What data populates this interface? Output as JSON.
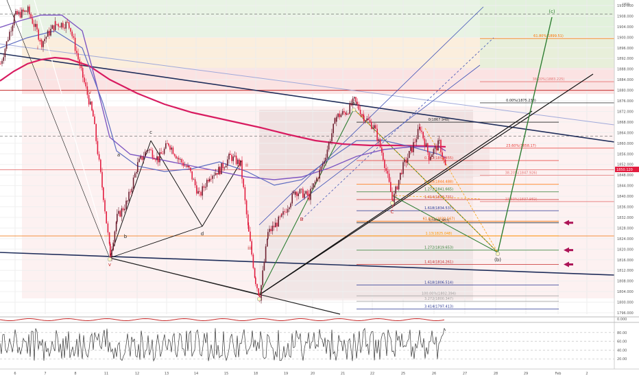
{
  "chart_data": {
    "type": "candlestick-annotated",
    "currency_label": "USD",
    "price_axis": {
      "ticks": [
        "1912.000",
        "1908.000",
        "1904.000",
        "1900.000",
        "1896.000",
        "1892.000",
        "1888.000",
        "1884.000",
        "1880.000",
        "1876.000",
        "1872.000",
        "1868.000",
        "1864.000",
        "1860.000",
        "1856.000",
        "1852.000",
        "1848.000",
        "1844.000",
        "1840.000",
        "1836.000",
        "1832.000",
        "1828.000",
        "1824.000",
        "1820.000",
        "1816.000",
        "1812.000",
        "1808.000",
        "1804.000",
        "1800.000",
        "1796.000"
      ],
      "current_price": "1850.120"
    },
    "time_axis": {
      "ticks": [
        "6",
        "7",
        "8",
        "11",
        "12",
        "13",
        "14",
        "15",
        "18",
        "19",
        "20",
        "21",
        "22",
        "25",
        "26",
        "27",
        "28",
        "29",
        "Feb",
        "2"
      ]
    },
    "wave_labels": [
      "(a)",
      "(b)",
      "(c)",
      "a",
      "b",
      "c",
      "d",
      "ii",
      "iii",
      "iv",
      "v",
      "i",
      "A",
      "B",
      "C"
    ],
    "fib_levels": [
      {
        "label": "0.00%(1875.238)",
        "value": 1875.238,
        "color": "#222222"
      },
      {
        "label": "0(1867.948)",
        "value": 1867.948,
        "color": "#222222"
      },
      {
        "label": "23.60%(1858.17)",
        "value": 1858.17,
        "color": "#e53935"
      },
      {
        "label": "0.382(1853.455)",
        "value": 1853.455,
        "color": "#e53935"
      },
      {
        "label": "38.20%(1847.926)",
        "value": 1847.926,
        "color": "#e57373"
      },
      {
        "label": "0.618(1844.488)",
        "value": 1844.488,
        "color": "#ff6f00"
      },
      {
        "label": "1.272(1841.665)",
        "value": 1841.665,
        "color": "#2e7d32"
      },
      {
        "label": "1.414(1838.731)",
        "value": 1838.731,
        "color": "#c62828"
      },
      {
        "label": "1.618(1834.537)",
        "value": 1834.537,
        "color": "#283593"
      },
      {
        "label": "1(1829.982)",
        "value": 1829.982,
        "color": "#222222"
      },
      {
        "label": "61.80%(1830.567)",
        "value": 1830.567,
        "color": "#ef6c00"
      },
      {
        "label": "1.13(1825.048)",
        "value": 1825.048,
        "color": "#ff9800"
      },
      {
        "label": "1.272(1819.653)",
        "value": 1819.653,
        "color": "#2e7d32"
      },
      {
        "label": "1.414(1814.261)",
        "value": 1814.261,
        "color": "#c62828"
      },
      {
        "label": "1.618(1806.514)",
        "value": 1806.514,
        "color": "#283593"
      },
      {
        "label": "61.80%(1899.51)",
        "value": 1899.51,
        "color": "#ff6f00"
      },
      {
        "label": "38.20%(1883.225)",
        "value": 1883.225,
        "color": "#e57373"
      },
      {
        "label": "23.60%(1837.982)",
        "value": 1837.982,
        "color": "#e57373"
      },
      {
        "label": "100.00%(1802.394)",
        "value": 1802.394,
        "color": "#9e9e9e"
      },
      {
        "label": "3.272(1800.347)",
        "value": 1800.347,
        "color": "#9e9e9e"
      },
      {
        "label": "3.414(1797.413)",
        "value": 1797.413,
        "color": "#283593"
      }
    ],
    "oscillator_ticks": [
      "0.000",
      "80.00",
      "60.00",
      "40.00",
      "20.00"
    ]
  }
}
